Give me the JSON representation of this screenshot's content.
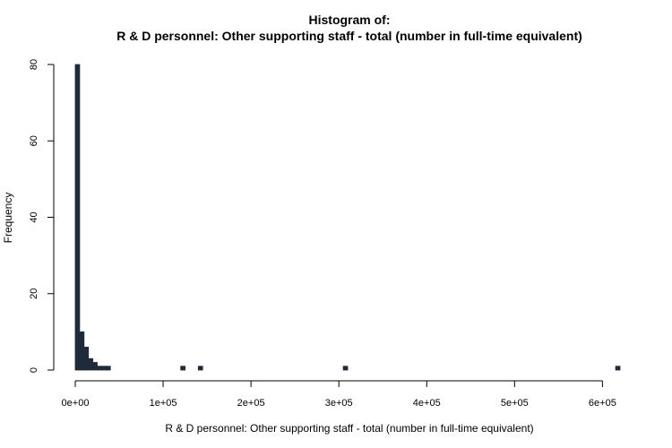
{
  "chart_data": {
    "type": "bar",
    "title": "Histogram of:",
    "subtitle": "R & D personnel: Other supporting staff - total (number in full-time equivalent)",
    "xlabel": "R & D personnel: Other supporting staff - total (number in full-time equivalent)",
    "ylabel": "Frequency",
    "bin_width": 5000,
    "xlim": [
      0,
      620000
    ],
    "ylim": [
      0,
      80
    ],
    "x_ticks": [
      0,
      100000,
      200000,
      300000,
      400000,
      500000,
      600000
    ],
    "x_tick_labels": [
      "0e+00",
      "1e+05",
      "2e+05",
      "3e+05",
      "4e+05",
      "5e+05",
      "6e+05"
    ],
    "y_ticks": [
      0,
      20,
      40,
      60,
      80
    ],
    "y_tick_labels": [
      "0",
      "20",
      "40",
      "60",
      "80"
    ],
    "bins": [
      {
        "x0": 0,
        "x1": 5000,
        "count": 80
      },
      {
        "x0": 5000,
        "x1": 10000,
        "count": 10
      },
      {
        "x0": 10000,
        "x1": 15000,
        "count": 6
      },
      {
        "x0": 15000,
        "x1": 20000,
        "count": 3
      },
      {
        "x0": 20000,
        "x1": 25000,
        "count": 2
      },
      {
        "x0": 25000,
        "x1": 30000,
        "count": 1
      },
      {
        "x0": 30000,
        "x1": 35000,
        "count": 1
      },
      {
        "x0": 35000,
        "x1": 40000,
        "count": 1
      },
      {
        "x0": 120000,
        "x1": 125000,
        "count": 1
      },
      {
        "x0": 140000,
        "x1": 145000,
        "count": 1
      },
      {
        "x0": 305000,
        "x1": 310000,
        "count": 1
      },
      {
        "x0": 615000,
        "x1": 620000,
        "count": 1
      }
    ],
    "bar_color": "#1e2b3a",
    "grid": false,
    "legend": "none"
  }
}
